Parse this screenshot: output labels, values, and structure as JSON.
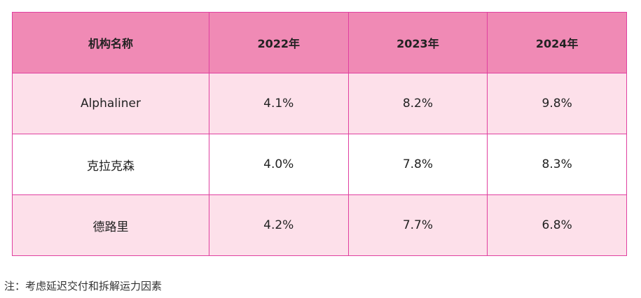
{
  "table": {
    "header": [
      "机构名称",
      "2022年",
      "2023年",
      "2024年"
    ],
    "rows": [
      [
        "Alphaliner",
        "4.1%",
        "8.2%",
        "9.8%"
      ],
      [
        "克拉克森",
        "4.0%",
        "7.8%",
        "8.3%"
      ],
      [
        "德路里",
        "4.2%",
        "7.7%",
        "6.8%"
      ]
    ]
  },
  "note": "注：考虑延迟交付和拆解运力因素"
}
